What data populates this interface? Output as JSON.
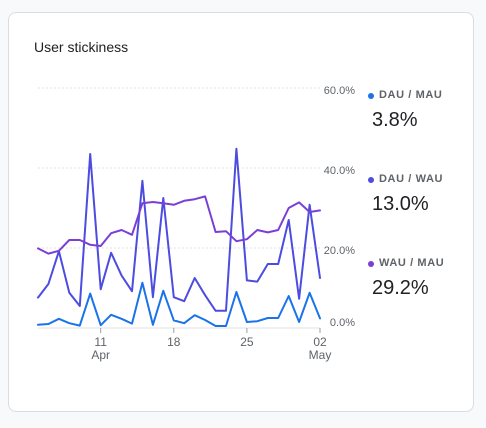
{
  "title": "User stickiness",
  "chart_data": {
    "type": "line",
    "ylim": [
      0,
      60
    ],
    "y_ticks": [
      "60.0%",
      "40.0%",
      "20.0%",
      "0.0%"
    ],
    "x_ticks": [
      {
        "day": 11,
        "label": "11",
        "sub": "Apr"
      },
      {
        "day": 18,
        "label": "18",
        "sub": ""
      },
      {
        "day": 25,
        "label": "25",
        "sub": ""
      },
      {
        "day": 32,
        "label": "02",
        "sub": "May"
      }
    ],
    "x_start_day": 5,
    "series": [
      {
        "name": "DAU / MAU",
        "summary": "3.8%",
        "color": "#1a73e8",
        "values": [
          0.8,
          1.0,
          2.3,
          1.2,
          0.6,
          8.6,
          0.7,
          3.3,
          2.3,
          1.1,
          11.3,
          0.8,
          9.3,
          1.9,
          1.2,
          3.2,
          2.0,
          0.5,
          0.5,
          9.0,
          1.5,
          1.7,
          2.5,
          2.5,
          8.0,
          1.5,
          8.8,
          2.4
        ]
      },
      {
        "name": "DAU / WAU",
        "summary": "13.0%",
        "color": "#4c4ce0",
        "values": [
          7.6,
          11.0,
          19.2,
          8.8,
          5.5,
          43.5,
          9.7,
          18.8,
          13.1,
          9.2,
          36.8,
          7.7,
          32.5,
          7.7,
          6.7,
          12.5,
          8.2,
          4.3,
          4.3,
          44.8,
          11.9,
          11.6,
          16.0,
          16.0,
          27.0,
          7.3,
          30.8,
          12.5
        ]
      },
      {
        "name": "WAU / MAU",
        "summary": "29.2%",
        "color": "#7b3fd4",
        "values": [
          19.9,
          18.6,
          19.3,
          22.0,
          22.0,
          20.8,
          20.5,
          23.7,
          24.5,
          23.3,
          31.2,
          31.5,
          31.2,
          30.8,
          31.8,
          32.2,
          32.9,
          24.0,
          24.2,
          21.7,
          22.2,
          24.5,
          23.9,
          24.5,
          30.0,
          31.4,
          29.0,
          29.4
        ]
      }
    ]
  }
}
